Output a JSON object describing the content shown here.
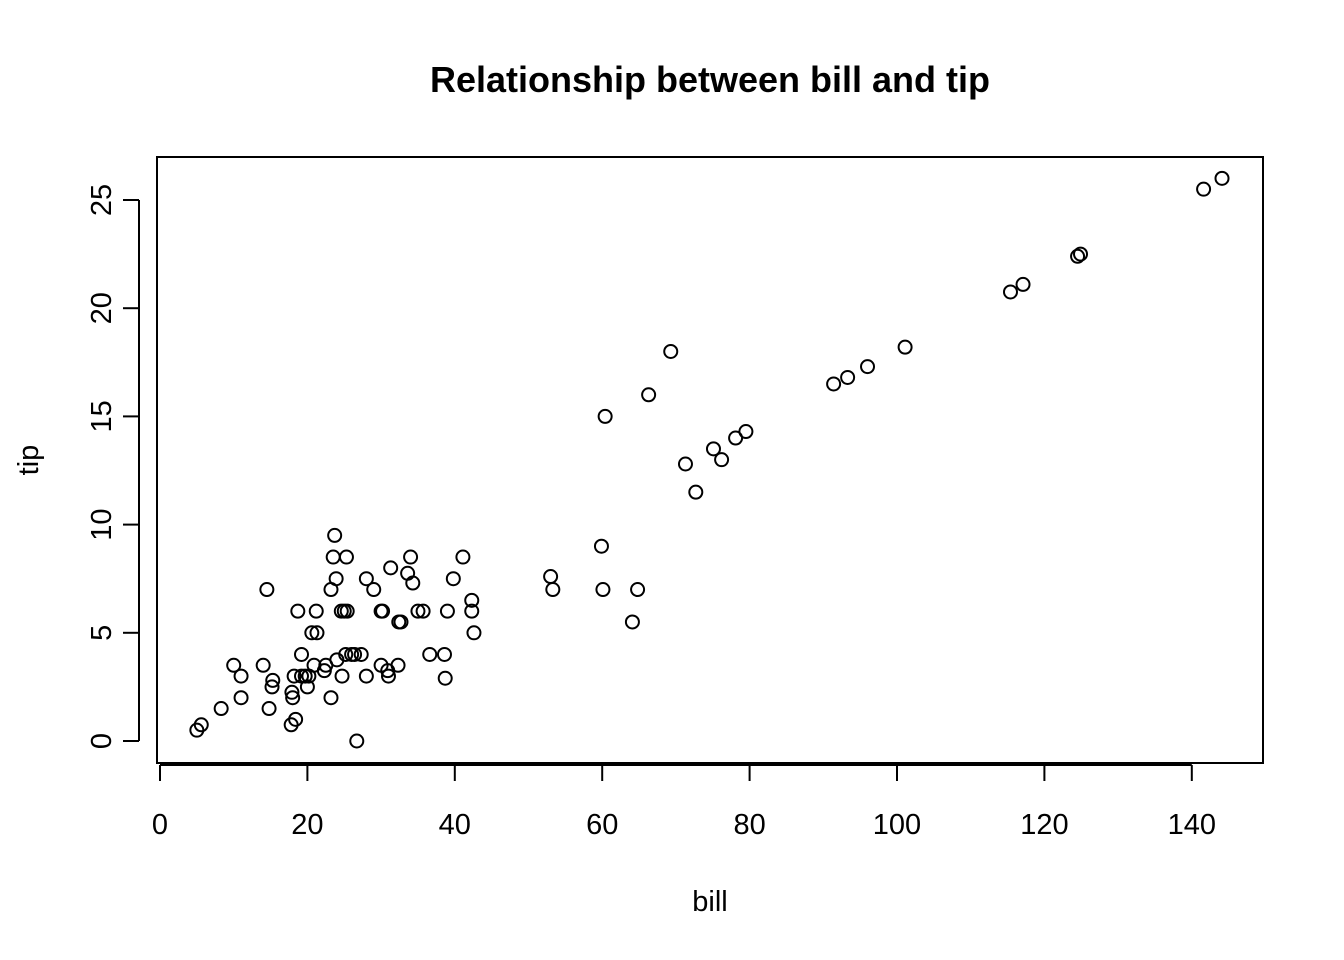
{
  "chart_data": {
    "type": "scatter",
    "title": "Relationship between bill and tip",
    "xlabel": "bill",
    "ylabel": "tip",
    "xlim": [
      0,
      150
    ],
    "ylim": [
      -1,
      27
    ],
    "x_ticks": [
      0,
      20,
      40,
      60,
      80,
      100,
      120,
      140
    ],
    "y_ticks": [
      0,
      5,
      10,
      15,
      20,
      25
    ],
    "grid": false,
    "point_style": "open-circle",
    "points": [
      {
        "x": 5,
        "y": 0.5
      },
      {
        "x": 5.6,
        "y": 0.75
      },
      {
        "x": 8.3,
        "y": 1.5
      },
      {
        "x": 10,
        "y": 3.5
      },
      {
        "x": 11,
        "y": 2
      },
      {
        "x": 11,
        "y": 3
      },
      {
        "x": 14,
        "y": 3.5
      },
      {
        "x": 14.5,
        "y": 7
      },
      {
        "x": 14.8,
        "y": 1.5
      },
      {
        "x": 15.2,
        "y": 2.5
      },
      {
        "x": 15.3,
        "y": 2.8
      },
      {
        "x": 17.8,
        "y": 0.75
      },
      {
        "x": 17.9,
        "y": 2.25
      },
      {
        "x": 18,
        "y": 2
      },
      {
        "x": 18.2,
        "y": 3
      },
      {
        "x": 18.4,
        "y": 1
      },
      {
        "x": 18.7,
        "y": 6
      },
      {
        "x": 19.2,
        "y": 4
      },
      {
        "x": 19.2,
        "y": 3
      },
      {
        "x": 19.7,
        "y": 3
      },
      {
        "x": 20,
        "y": 2.5
      },
      {
        "x": 20.2,
        "y": 3
      },
      {
        "x": 20.6,
        "y": 5
      },
      {
        "x": 20.9,
        "y": 3.5
      },
      {
        "x": 21.2,
        "y": 6
      },
      {
        "x": 21.3,
        "y": 5
      },
      {
        "x": 22.3,
        "y": 3.25
      },
      {
        "x": 22.5,
        "y": 3.5
      },
      {
        "x": 23.2,
        "y": 2
      },
      {
        "x": 23.2,
        "y": 7
      },
      {
        "x": 23.5,
        "y": 8.5
      },
      {
        "x": 23.7,
        "y": 9.5
      },
      {
        "x": 23.9,
        "y": 7.5
      },
      {
        "x": 24,
        "y": 3.75
      },
      {
        "x": 24.6,
        "y": 6
      },
      {
        "x": 24.7,
        "y": 3
      },
      {
        "x": 25,
        "y": 6
      },
      {
        "x": 25.2,
        "y": 4
      },
      {
        "x": 25.3,
        "y": 8.5
      },
      {
        "x": 25.4,
        "y": 6
      },
      {
        "x": 26,
        "y": 4
      },
      {
        "x": 26.4,
        "y": 4
      },
      {
        "x": 26.7,
        "y": 0
      },
      {
        "x": 27.3,
        "y": 4
      },
      {
        "x": 28,
        "y": 3
      },
      {
        "x": 28,
        "y": 7.5
      },
      {
        "x": 29,
        "y": 7
      },
      {
        "x": 30,
        "y": 6
      },
      {
        "x": 30,
        "y": 3.5
      },
      {
        "x": 30.2,
        "y": 6
      },
      {
        "x": 30.9,
        "y": 3.25
      },
      {
        "x": 31,
        "y": 3
      },
      {
        "x": 31.3,
        "y": 8
      },
      {
        "x": 32.3,
        "y": 3.5
      },
      {
        "x": 32.4,
        "y": 5.5
      },
      {
        "x": 32.7,
        "y": 5.5
      },
      {
        "x": 33.6,
        "y": 7.75
      },
      {
        "x": 34,
        "y": 8.5
      },
      {
        "x": 34.3,
        "y": 7.3
      },
      {
        "x": 35,
        "y": 6
      },
      {
        "x": 35.7,
        "y": 6
      },
      {
        "x": 36.6,
        "y": 4
      },
      {
        "x": 38.6,
        "y": 4
      },
      {
        "x": 38.7,
        "y": 2.9
      },
      {
        "x": 39,
        "y": 6
      },
      {
        "x": 39.8,
        "y": 7.5
      },
      {
        "x": 41.1,
        "y": 8.5
      },
      {
        "x": 42.3,
        "y": 6.5
      },
      {
        "x": 42.3,
        "y": 6
      },
      {
        "x": 42.6,
        "y": 5
      },
      {
        "x": 53,
        "y": 7.6
      },
      {
        "x": 53.3,
        "y": 7
      },
      {
        "x": 59.9,
        "y": 9
      },
      {
        "x": 60.1,
        "y": 7
      },
      {
        "x": 60.4,
        "y": 15
      },
      {
        "x": 64.1,
        "y": 5.5
      },
      {
        "x": 64.8,
        "y": 7
      },
      {
        "x": 66.3,
        "y": 16
      },
      {
        "x": 69.3,
        "y": 18
      },
      {
        "x": 71.3,
        "y": 12.8
      },
      {
        "x": 72.7,
        "y": 11.5
      },
      {
        "x": 75.1,
        "y": 13.5
      },
      {
        "x": 76.2,
        "y": 13
      },
      {
        "x": 78.1,
        "y": 14
      },
      {
        "x": 79.5,
        "y": 14.3
      },
      {
        "x": 91.4,
        "y": 16.5
      },
      {
        "x": 93.3,
        "y": 16.8
      },
      {
        "x": 96,
        "y": 17.3
      },
      {
        "x": 101.1,
        "y": 18.2
      },
      {
        "x": 115.4,
        "y": 20.75
      },
      {
        "x": 117.1,
        "y": 21.1
      },
      {
        "x": 124.5,
        "y": 22.4
      },
      {
        "x": 124.9,
        "y": 22.5
      },
      {
        "x": 141.6,
        "y": 25.5
      },
      {
        "x": 144.1,
        "y": 26
      }
    ]
  }
}
